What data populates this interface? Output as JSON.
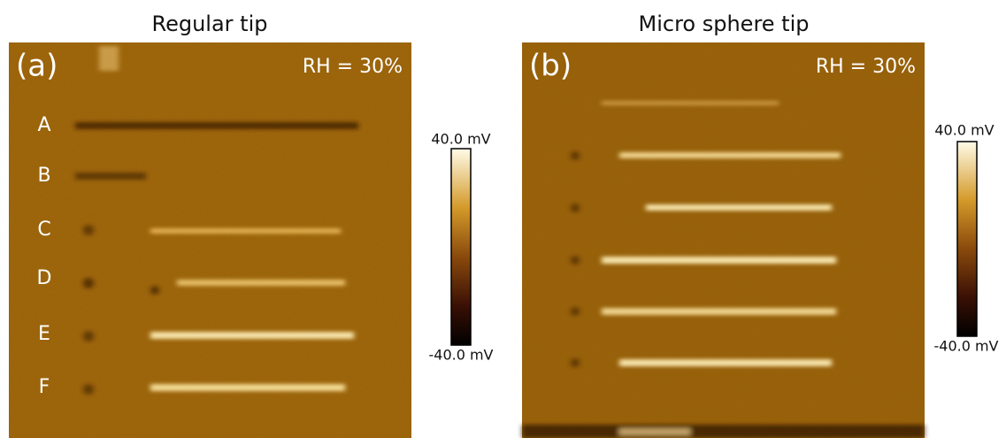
{
  "panels": [
    {
      "title": "Regular tip",
      "label": "(a)",
      "annotation": "RH = 30%",
      "rows": [
        "A",
        "B",
        "C",
        "D",
        "E",
        "F"
      ],
      "colorbar": {
        "max": "40.0 mV",
        "min": "-40.0 mV"
      }
    },
    {
      "title": "Micro sphere tip",
      "label": "(b)",
      "annotation": "RH = 30%",
      "colorbar": {
        "max": "40.0 mV",
        "min": "-40.0 mV"
      }
    }
  ]
}
